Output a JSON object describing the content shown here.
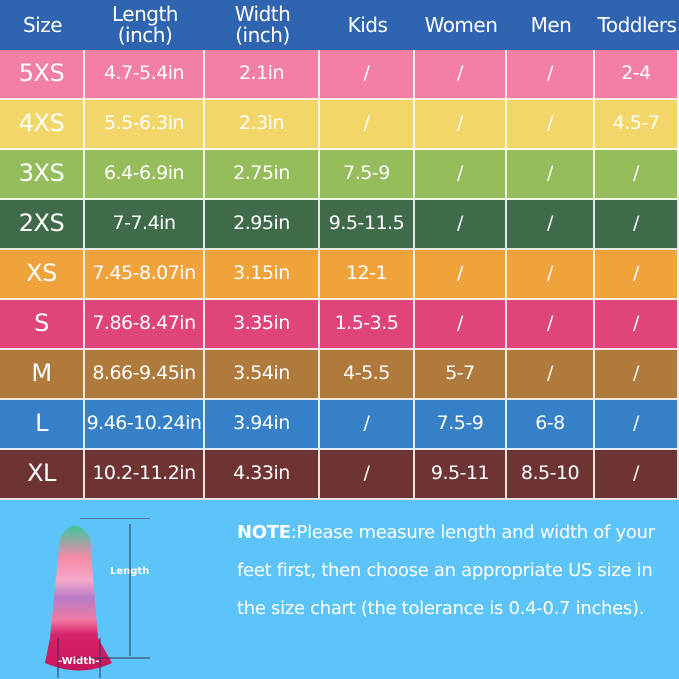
{
  "headers": [
    "Size",
    "Length\n(inch)",
    "Width\n(inch)",
    "Kids",
    "Women",
    "Men",
    "Toddlers"
  ],
  "header_color": "#2f64b0",
  "rows": [
    {
      "size": "5XS",
      "length": "4.7-5.4in",
      "width": "2.1in",
      "kids": "/",
      "women": "/",
      "men": "/",
      "toddlers": "2-4",
      "color": "#f47fa4"
    },
    {
      "size": "4XS",
      "length": "5.5-6.3in",
      "width": "2.3in",
      "kids": "/",
      "women": "/",
      "men": "/",
      "toddlers": "4.5-7",
      "color": "#f3d66a"
    },
    {
      "size": "3XS",
      "length": "6.4-6.9in",
      "width": "2.75in",
      "kids": "7.5-9",
      "women": "/",
      "men": "/",
      "toddlers": "/",
      "color": "#96bd5c"
    },
    {
      "size": "2XS",
      "length": "7-7.4in",
      "width": "2.95in",
      "kids": "9.5-11.5",
      "women": "/",
      "men": "/",
      "toddlers": "/",
      "color": "#3f6b4b"
    },
    {
      "size": "XS",
      "length": "7.45-8.07in",
      "width": "3.15in",
      "kids": "12-1",
      "women": "/",
      "men": "/",
      "toddlers": "/",
      "color": "#f0a33c"
    },
    {
      "size": "S",
      "length": "7.86-8.47in",
      "width": "3.35in",
      "kids": "1.5-3.5",
      "women": "/",
      "men": "/",
      "toddlers": "/",
      "color": "#df447a"
    },
    {
      "size": "M",
      "length": "8.66-9.45in",
      "width": "3.54in",
      "kids": "4-5.5",
      "women": "5-7",
      "men": "/",
      "toddlers": "/",
      "color": "#b07a3c"
    },
    {
      "size": "L",
      "length": "9.46-10.24in",
      "width": "3.94in",
      "kids": "/",
      "women": "7.5-9",
      "men": "6-8",
      "toddlers": "/",
      "color": "#3580c6"
    },
    {
      "size": "XL",
      "length": "10.2-11.2in",
      "width": "4.33in",
      "kids": "/",
      "women": "9.5-11",
      "men": "8.5-10",
      "toddlers": "/",
      "color": "#6e3434"
    }
  ],
  "note": {
    "label": "NOTE",
    "text": ":Please measure length and width of your feet first, then choose an appropriate US size in the size chart (the tolerance is 0.4-0.7 inches)."
  },
  "diagram": {
    "length_label": "Length",
    "width_label": "-Width-"
  },
  "bottom_color": "#5cc4f8"
}
